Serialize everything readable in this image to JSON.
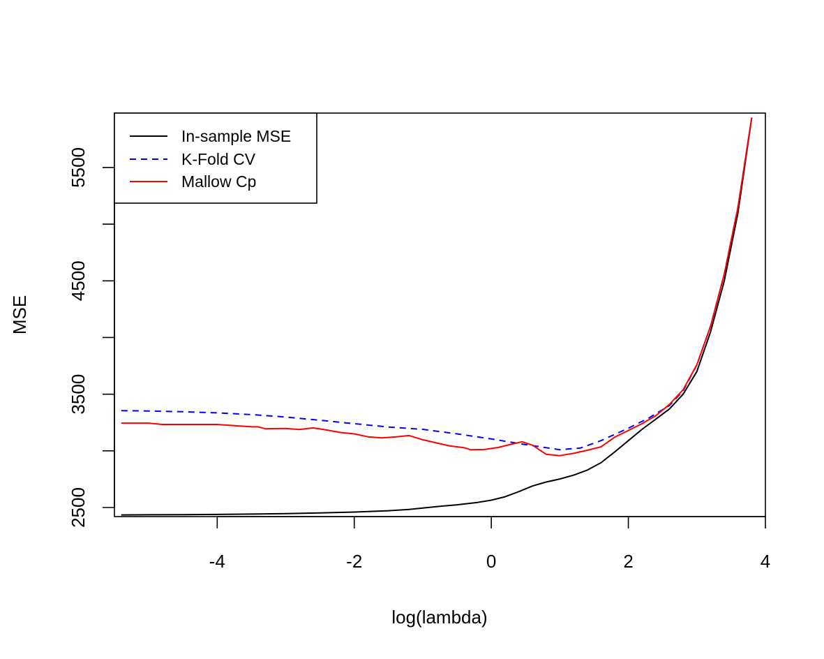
{
  "chart_data": {
    "type": "line",
    "title": "",
    "xlabel": "log(lambda)",
    "ylabel": "MSE",
    "xlim": [
      -5.5,
      4.0
    ],
    "ylim": [
      2420,
      5980
    ],
    "x_ticks": [
      -4,
      -2,
      0,
      2,
      4
    ],
    "x_tick_labels": [
      "-4",
      "-2",
      "0",
      "2",
      "4"
    ],
    "y_ticks": [
      2500,
      3000,
      3500,
      4000,
      4500,
      5000,
      5500
    ],
    "y_tick_labels": [
      "2500",
      "",
      "3500",
      "",
      "4500",
      "",
      "5500"
    ],
    "grid": false,
    "legend_position": "top-left",
    "series": [
      {
        "name": "In-sample MSE",
        "color": "#000000",
        "dash": "solid",
        "points": [
          [
            -5.4,
            2435
          ],
          [
            -5.0,
            2436
          ],
          [
            -4.5,
            2437
          ],
          [
            -4.0,
            2439
          ],
          [
            -3.5,
            2442
          ],
          [
            -3.0,
            2446
          ],
          [
            -2.5,
            2452
          ],
          [
            -2.0,
            2460
          ],
          [
            -1.5,
            2472
          ],
          [
            -1.2,
            2483
          ],
          [
            -1.0,
            2495
          ],
          [
            -0.8,
            2508
          ],
          [
            -0.5,
            2524
          ],
          [
            -0.2,
            2545
          ],
          [
            0.0,
            2565
          ],
          [
            0.2,
            2595
          ],
          [
            0.4,
            2640
          ],
          [
            0.6,
            2690
          ],
          [
            0.8,
            2725
          ],
          [
            1.0,
            2752
          ],
          [
            1.2,
            2785
          ],
          [
            1.4,
            2830
          ],
          [
            1.6,
            2895
          ],
          [
            1.8,
            2990
          ],
          [
            2.0,
            3090
          ],
          [
            2.2,
            3190
          ],
          [
            2.4,
            3280
          ],
          [
            2.6,
            3370
          ],
          [
            2.8,
            3500
          ],
          [
            3.0,
            3700
          ],
          [
            3.2,
            4050
          ],
          [
            3.4,
            4500
          ],
          [
            3.6,
            5100
          ],
          [
            3.8,
            5940
          ]
        ]
      },
      {
        "name": "K-Fold CV",
        "color": "#0000ff",
        "dash": "dashed",
        "points": [
          [
            -5.4,
            3355
          ],
          [
            -5.0,
            3352
          ],
          [
            -4.5,
            3345
          ],
          [
            -4.0,
            3335
          ],
          [
            -3.5,
            3320
          ],
          [
            -3.0,
            3298
          ],
          [
            -2.5,
            3270
          ],
          [
            -2.0,
            3240
          ],
          [
            -1.5,
            3210
          ],
          [
            -1.0,
            3190
          ],
          [
            -0.5,
            3150
          ],
          [
            0.0,
            3105
          ],
          [
            0.5,
            3055
          ],
          [
            1.0,
            3010
          ],
          [
            1.3,
            3025
          ],
          [
            1.6,
            3090
          ],
          [
            2.0,
            3200
          ],
          [
            2.3,
            3290
          ],
          [
            2.6,
            3400
          ],
          [
            2.8,
            3530
          ],
          [
            3.0,
            3760
          ],
          [
            3.2,
            4100
          ],
          [
            3.4,
            4560
          ],
          [
            3.6,
            5150
          ],
          [
            3.8,
            5940
          ]
        ]
      },
      {
        "name": "Mallow Cp",
        "color": "#ff0000",
        "dash": "solid",
        "points": [
          [
            -5.4,
            3245
          ],
          [
            -5.0,
            3245
          ],
          [
            -4.8,
            3233
          ],
          [
            -4.5,
            3233
          ],
          [
            -4.0,
            3233
          ],
          [
            -3.5,
            3212
          ],
          [
            -3.4,
            3212
          ],
          [
            -3.3,
            3195
          ],
          [
            -3.0,
            3198
          ],
          [
            -2.8,
            3188
          ],
          [
            -2.6,
            3203
          ],
          [
            -2.4,
            3184
          ],
          [
            -2.2,
            3162
          ],
          [
            -2.0,
            3150
          ],
          [
            -1.8,
            3124
          ],
          [
            -1.6,
            3115
          ],
          [
            -1.4,
            3123
          ],
          [
            -1.2,
            3135
          ],
          [
            -1.0,
            3098
          ],
          [
            -0.8,
            3070
          ],
          [
            -0.6,
            3043
          ],
          [
            -0.4,
            3028
          ],
          [
            -0.3,
            3010
          ],
          [
            -0.1,
            3012
          ],
          [
            0.1,
            3030
          ],
          [
            0.3,
            3060
          ],
          [
            0.45,
            3080
          ],
          [
            0.6,
            3050
          ],
          [
            0.8,
            2970
          ],
          [
            1.0,
            2958
          ],
          [
            1.2,
            2978
          ],
          [
            1.4,
            3005
          ],
          [
            1.6,
            3035
          ],
          [
            1.8,
            3120
          ],
          [
            2.0,
            3180
          ],
          [
            2.2,
            3240
          ],
          [
            2.4,
            3310
          ],
          [
            2.6,
            3410
          ],
          [
            2.8,
            3540
          ],
          [
            3.0,
            3760
          ],
          [
            3.2,
            4100
          ],
          [
            3.4,
            4560
          ],
          [
            3.6,
            5150
          ],
          [
            3.8,
            5940
          ]
        ]
      }
    ]
  }
}
